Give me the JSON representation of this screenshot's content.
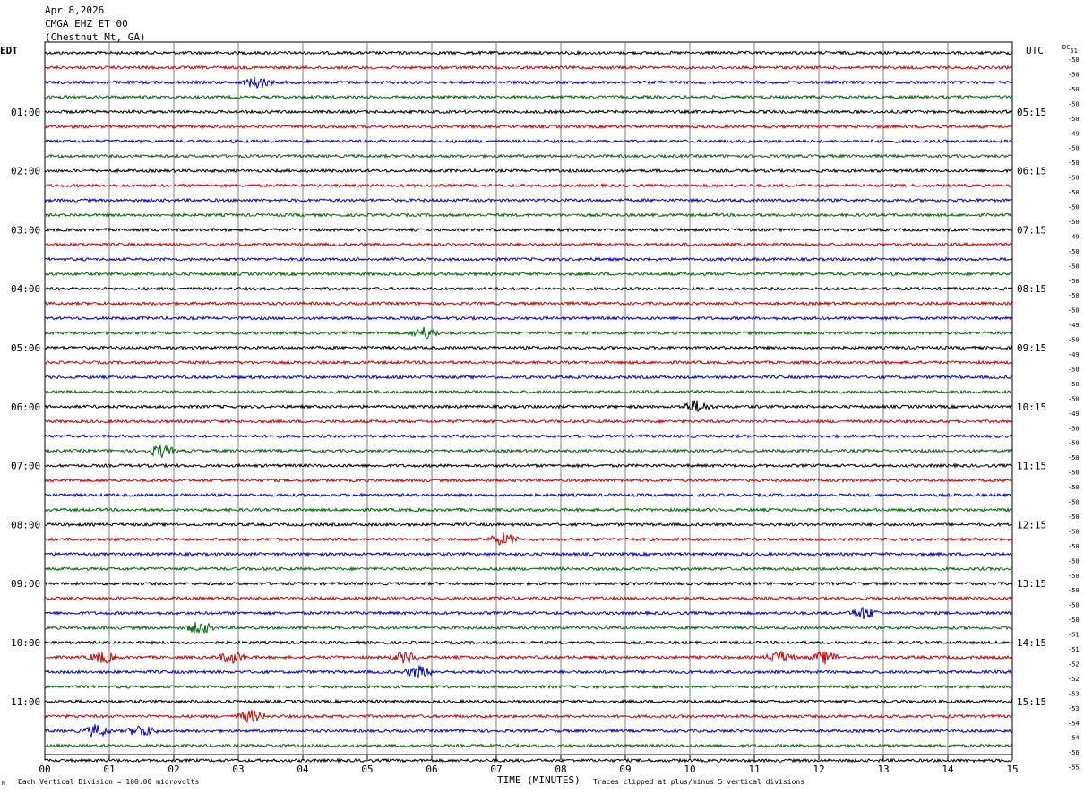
{
  "header": {
    "date": "Apr 8,2026",
    "station": "CMGA EHZ ET 00",
    "location": "(Chestnut Mt, GA)"
  },
  "left_tz": "EDT",
  "right_tz": "UTC",
  "dc_label": "DC",
  "dc_first_value": "51",
  "footer": {
    "scale": "Each Vertical Division =  100.00 microvolts",
    "xlabel": "TIME (MINUTES)",
    "clip": "Traces clipped at plus/minus 5 vertical divisions",
    "corner_mark": "M"
  },
  "colors": {
    "black": "#000000",
    "red": "#cc0000",
    "blue": "#0000cc",
    "green": "#006600",
    "grid": "#808080"
  },
  "chart_data": {
    "type": "line",
    "title": "Apr 8,2026 CMGA EHZ ET 00 (Chestnut Mt, GA)",
    "xlabel": "TIME (MINUTES)",
    "xlim": [
      0,
      15
    ],
    "x_ticks": [
      "00",
      "01",
      "02",
      "03",
      "04",
      "05",
      "06",
      "07",
      "08",
      "09",
      "10",
      "11",
      "12",
      "13",
      "14",
      "15"
    ],
    "trace_colors_cycle": [
      "black",
      "red",
      "blue",
      "green"
    ],
    "edt_hour_labels": [
      "01:00",
      "02:00",
      "03:00",
      "04:00",
      "05:00",
      "06:00",
      "07:00",
      "08:00",
      "09:00",
      "10:00",
      "11:00"
    ],
    "utc_hour_labels": [
      "05:15",
      "06:15",
      "07:15",
      "08:15",
      "09:15",
      "10:15",
      "11:15",
      "12:15",
      "13:15",
      "14:15",
      "15:15"
    ],
    "dc_offsets": [
      "-50",
      "-50",
      "-50",
      "-50",
      "-50",
      "-49",
      "-50",
      "-50",
      "-50",
      "-50",
      "-50",
      "-50",
      "-49",
      "-50",
      "-50",
      "-50",
      "-50",
      "-50",
      "-49",
      "-50",
      "-49",
      "-50",
      "-50",
      "-50",
      "-49",
      "-50",
      "-50",
      "-50",
      "-50",
      "-50",
      "-50",
      "-50",
      "-50",
      "-50",
      "-50",
      "-50",
      "-50",
      "-50",
      "-50",
      "-51",
      "-51",
      "-52",
      "-52",
      "-53",
      "-53",
      "-54",
      "-54",
      "-56",
      "-55"
    ],
    "events": [
      {
        "row": 2,
        "minute": 3.3
      },
      {
        "row": 19,
        "minute": 5.9
      },
      {
        "row": 24,
        "minute": 10.1
      },
      {
        "row": 27,
        "minute": 1.8
      },
      {
        "row": 33,
        "minute": 7.1
      },
      {
        "row": 38,
        "minute": 12.7
      },
      {
        "row": 39,
        "minute": 2.4
      },
      {
        "row": 41,
        "minute": 0.9
      },
      {
        "row": 41,
        "minute": 2.9
      },
      {
        "row": 41,
        "minute": 5.6
      },
      {
        "row": 41,
        "minute": 11.4
      },
      {
        "row": 41,
        "minute": 12.1
      },
      {
        "row": 42,
        "minute": 5.8
      },
      {
        "row": 45,
        "minute": 3.2
      },
      {
        "row": 46,
        "minute": 0.8
      },
      {
        "row": 46,
        "minute": 1.5
      }
    ]
  }
}
